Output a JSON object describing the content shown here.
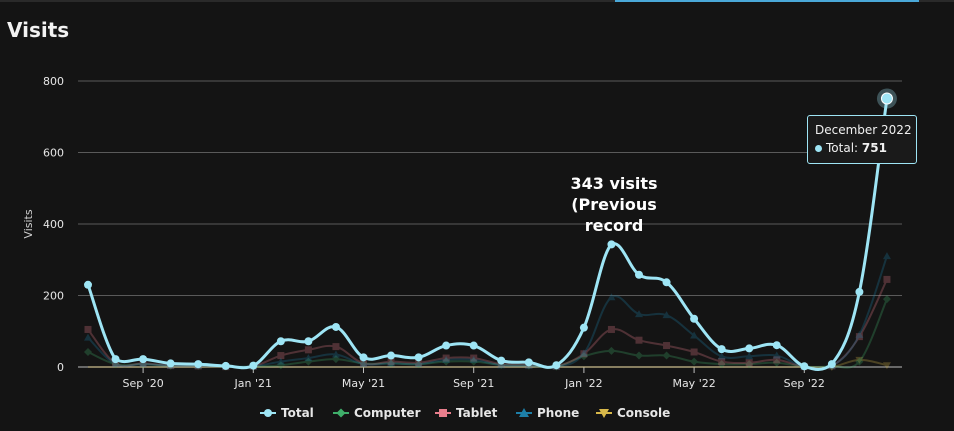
{
  "page": {
    "title": "Visits"
  },
  "tooltip": {
    "date": "December 2022",
    "series": "Total",
    "sep": ": ",
    "value": "751"
  },
  "annotation": {
    "lines": [
      "343 visits",
      "(Previous",
      "record"
    ]
  },
  "colors": {
    "Total": "#9ee5f5",
    "Computer": "#3fae6a",
    "Tablet": "#e87e8c",
    "Phone": "#1d7fa8",
    "Console": "#d8b84a"
  },
  "chart_data": {
    "type": "line",
    "ylabel": "Visits",
    "ylim": [
      0,
      800
    ],
    "yticks": [
      0,
      200,
      400,
      600,
      800
    ],
    "x": [
      "Jul 2020",
      "Aug 2020",
      "Sep 2020",
      "Oct 2020",
      "Nov 2020",
      "Dec 2020",
      "Jan 2021",
      "Feb 2021",
      "Mar 2021",
      "Apr 2021",
      "May 2021",
      "Jun 2021",
      "Jul 2021",
      "Aug 2021",
      "Sep 2021",
      "Oct 2021",
      "Nov 2021",
      "Dec 2021",
      "Jan 2022",
      "Feb 2022",
      "Mar 2022",
      "Apr 2022",
      "May 2022",
      "Jun 2022",
      "Jul 2022",
      "Aug 2022",
      "Sep 2022",
      "Oct 2022",
      "Nov 2022",
      "Dec 2022"
    ],
    "xticks": [
      {
        "label": "Sep '20",
        "index": 2
      },
      {
        "label": "Jan '21",
        "index": 6
      },
      {
        "label": "May '21",
        "index": 10
      },
      {
        "label": "Sep '21",
        "index": 14
      },
      {
        "label": "Jan '22",
        "index": 18
      },
      {
        "label": "May '22",
        "index": 22
      },
      {
        "label": "Sep '22",
        "index": 26
      }
    ],
    "series": [
      {
        "name": "Total",
        "marker": "circle",
        "values": [
          230,
          22,
          22,
          10,
          8,
          3,
          4,
          72,
          72,
          112,
          27,
          32,
          27,
          60,
          60,
          18,
          13,
          5,
          110,
          343,
          258,
          237,
          135,
          50,
          52,
          61,
          2,
          8,
          210,
          751
        ]
      },
      {
        "name": "Computer",
        "marker": "diamond",
        "values": [
          42,
          8,
          8,
          3,
          3,
          1,
          1,
          5,
          15,
          22,
          10,
          10,
          8,
          15,
          15,
          6,
          4,
          1,
          30,
          45,
          32,
          32,
          15,
          8,
          8,
          12,
          1,
          2,
          15,
          190
        ]
      },
      {
        "name": "Tablet",
        "marker": "square",
        "values": [
          105,
          10,
          10,
          4,
          3,
          1,
          2,
          32,
          48,
          57,
          10,
          15,
          12,
          25,
          25,
          8,
          6,
          2,
          37,
          105,
          75,
          60,
          42,
          15,
          12,
          20,
          1,
          3,
          85,
          245
        ]
      },
      {
        "name": "Phone",
        "marker": "triangle",
        "values": [
          82,
          8,
          8,
          4,
          3,
          1,
          2,
          15,
          25,
          35,
          8,
          10,
          8,
          20,
          20,
          5,
          4,
          1,
          38,
          195,
          148,
          145,
          88,
          30,
          30,
          32,
          1,
          3,
          90,
          310
        ]
      },
      {
        "name": "Console",
        "marker": "triangle-down",
        "values": [
          0,
          0,
          0,
          0,
          0,
          0,
          0,
          0,
          0,
          0,
          0,
          0,
          0,
          0,
          0,
          0,
          0,
          0,
          0,
          0,
          0,
          0,
          0,
          0,
          0,
          0,
          0,
          0,
          20,
          5
        ]
      }
    ],
    "legend": [
      "Total",
      "Computer",
      "Tablet",
      "Phone",
      "Console"
    ],
    "legend_position": "bottom",
    "grid": true
  }
}
